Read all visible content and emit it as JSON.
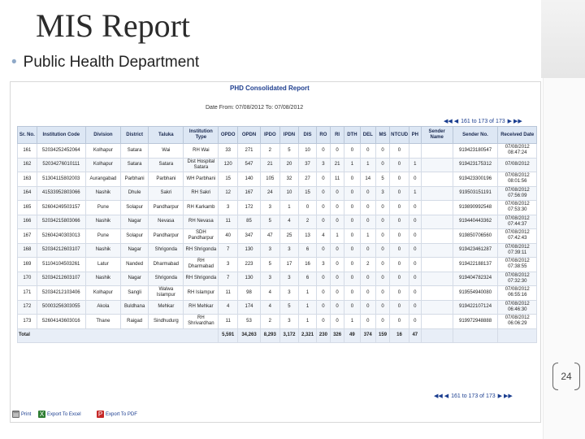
{
  "slide": {
    "title": "MIS Report",
    "bullet": "Public Health Department",
    "page_number": "24"
  },
  "report": {
    "title": "PHD Consolidated Report",
    "date_range": "Date From: 07/08/2012 To: 07/08/2012",
    "pager_text": "161 to 173 of 173",
    "columns": [
      "Sr. No.",
      "Institution Code",
      "Division",
      "District",
      "Taluka",
      "Institution Type",
      "OPDO",
      "OPDN",
      "IPDO",
      "IPDN",
      "DIS",
      "RO",
      "RI",
      "DTH",
      "DEL",
      "MS",
      "NTCUD",
      "PH",
      "Sender Name",
      "Sender No.",
      "Received Date"
    ],
    "rows": [
      [
        "161",
        "52034252452064",
        "Kolhapur",
        "Satara",
        "Wai",
        "RH Wai",
        "33",
        "271",
        "2",
        "5",
        "10",
        "0",
        "0",
        "0",
        "0",
        "0",
        "0",
        "",
        "",
        "919423180547",
        "07/08/2012 08:47:24"
      ],
      [
        "162",
        "52034276010111",
        "Kolhapur",
        "Satara",
        "Satara",
        "Dist Hospital Satara",
        "120",
        "547",
        "21",
        "20",
        "37",
        "3",
        "21",
        "1",
        "1",
        "0",
        "0",
        "1",
        "",
        "919423175312",
        "07/08/2012"
      ],
      [
        "163",
        "51304115802003",
        "Aurangabad",
        "Parbhani",
        "Parbhani",
        "WH Parbhani",
        "15",
        "140",
        "105",
        "32",
        "27",
        "0",
        "11",
        "0",
        "14",
        "5",
        "0",
        "0",
        "",
        "919423300196",
        "07/08/2012 08:01:56"
      ],
      [
        "164",
        "41533952803066",
        "Nashik",
        "Dhule",
        "Sakri",
        "RH Sakri",
        "12",
        "167",
        "24",
        "10",
        "15",
        "0",
        "0",
        "0",
        "0",
        "3",
        "0",
        "1",
        "",
        "919503151191",
        "07/08/2012 07:56:09"
      ],
      [
        "165",
        "52604249503157",
        "Pune",
        "Solapur",
        "Pandharpur",
        "RH Karkamb",
        "3",
        "172",
        "3",
        "1",
        "0",
        "0",
        "0",
        "0",
        "0",
        "0",
        "0",
        "0",
        "",
        "919890992548",
        "07/08/2012 07:53:30"
      ],
      [
        "166",
        "52034215803066",
        "Nashik",
        "Nagar",
        "Nevasa",
        "RH Nevasa",
        "11",
        "85",
        "5",
        "4",
        "2",
        "0",
        "0",
        "0",
        "0",
        "0",
        "0",
        "0",
        "",
        "919440443362",
        "07/08/2012 07:44:37"
      ],
      [
        "167",
        "52604240303013",
        "Pune",
        "Solapur",
        "Pandharpur",
        "SDH Pandharpur",
        "40",
        "347",
        "47",
        "25",
        "13",
        "4",
        "1",
        "0",
        "1",
        "0",
        "0",
        "0",
        "",
        "919850706560",
        "07/08/2012 07:42:43"
      ],
      [
        "168",
        "52034212603107",
        "Nashik",
        "Nagar",
        "Shrigonda",
        "RH Shrigonda",
        "7",
        "130",
        "3",
        "3",
        "6",
        "0",
        "0",
        "0",
        "0",
        "0",
        "0",
        "0",
        "",
        "919423461287",
        "07/08/2012 07:39:11"
      ],
      [
        "169",
        "51104104503261",
        "Latur",
        "Nanded",
        "Dharmabad",
        "RH Dharmabad",
        "3",
        "223",
        "5",
        "17",
        "16",
        "3",
        "0",
        "0",
        "2",
        "0",
        "0",
        "0",
        "",
        "919422188137",
        "07/08/2012 07:38:55"
      ],
      [
        "170",
        "52034212603107",
        "Nashik",
        "Nagar",
        "Shrigonda",
        "RH Shrigonda",
        "7",
        "130",
        "3",
        "3",
        "6",
        "0",
        "0",
        "0",
        "0",
        "0",
        "0",
        "0",
        "",
        "919404782324",
        "07/08/2012 07:32:30"
      ],
      [
        "171",
        "52034212103406",
        "Kolhapur",
        "Sangli",
        "Walwa Islampur",
        "RH Islampur",
        "11",
        "98",
        "4",
        "3",
        "1",
        "0",
        "0",
        "0",
        "0",
        "0",
        "0",
        "0",
        "",
        "919554940080",
        "07/08/2012 06:55:16"
      ],
      [
        "172",
        "50003256303055",
        "Akola",
        "Buldhana",
        "Mehkar",
        "RH Mehkar",
        "4",
        "174",
        "4",
        "5",
        "1",
        "0",
        "0",
        "0",
        "0",
        "0",
        "0",
        "0",
        "",
        "919422107124",
        "07/08/2012 06:46:30"
      ],
      [
        "173",
        "52604143603016",
        "Thane",
        "Raigad",
        "Sindhudurg",
        "RH Shrivardhan",
        "11",
        "53",
        "2",
        "3",
        "1",
        "0",
        "0",
        "1",
        "0",
        "0",
        "0",
        "0",
        "",
        "919972948888",
        "07/08/2012 06:06:29"
      ]
    ],
    "total": {
      "label": "Total",
      "values": [
        "5,591",
        "34,263",
        "8,293",
        "3,172",
        "2,321",
        "230",
        "326",
        "49",
        "374",
        "159",
        "16",
        "47"
      ]
    },
    "actions": {
      "print": "Print",
      "export_excel": "Export To Excel",
      "export_pdf": "Export To PDF"
    },
    "icons": {
      "first": "first-page-icon",
      "prev": "prev-page-icon",
      "next": "next-page-icon",
      "last": "last-page-icon"
    }
  },
  "colors": {
    "header_bg": "#dde7f4",
    "link": "#1a3d8f",
    "title_blue": "#1f3f8f",
    "bullet": "#8fa9c8"
  }
}
